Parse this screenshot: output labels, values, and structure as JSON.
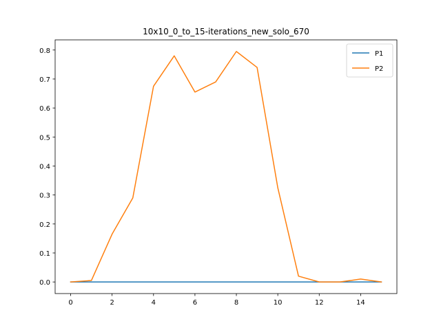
{
  "chart_data": {
    "type": "line",
    "title": "10x10_0_to_15-iterations_new_solo_670",
    "xlabel": "",
    "ylabel": "",
    "x": [
      0,
      1,
      2,
      3,
      4,
      5,
      6,
      7,
      8,
      9,
      10,
      11,
      12,
      13,
      14,
      15
    ],
    "xlim": [
      -0.75,
      15.75
    ],
    "ylim": [
      -0.04,
      0.835
    ],
    "xticks": [
      0,
      2,
      4,
      6,
      8,
      10,
      12,
      14
    ],
    "yticks": [
      0.0,
      0.1,
      0.2,
      0.3,
      0.4,
      0.5,
      0.6,
      0.7,
      0.8
    ],
    "grid": false,
    "legend_position": "top-right",
    "series": [
      {
        "name": "P1",
        "color": "#1f77b4",
        "values": [
          0,
          0,
          0,
          0,
          0,
          0,
          0,
          0,
          0,
          0,
          0,
          0,
          0,
          0,
          0,
          0
        ]
      },
      {
        "name": "P2",
        "color": "#ff7f0e",
        "values": [
          0.0,
          0.005,
          0.165,
          0.29,
          0.675,
          0.78,
          0.655,
          0.69,
          0.795,
          0.74,
          0.325,
          0.02,
          0.0,
          0.0,
          0.01,
          0.0
        ]
      }
    ]
  }
}
